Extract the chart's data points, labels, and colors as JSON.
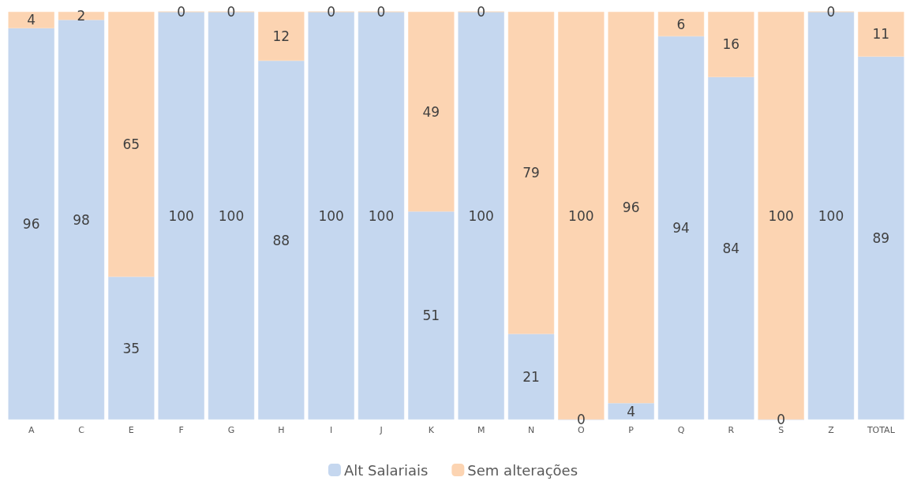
{
  "chart_data": {
    "type": "bar",
    "stacked": true,
    "data_labels": true,
    "legend": "bottom",
    "categories": [
      "A",
      "C",
      "E",
      "F",
      "G",
      "H",
      "I",
      "J",
      "K",
      "M",
      "N",
      "O",
      "P",
      "Q",
      "R",
      "S",
      "Z",
      "TOTAL"
    ],
    "series": [
      {
        "name": "Alt Salariais",
        "color": "#c5d7ef",
        "values": [
          96,
          98,
          35,
          100,
          100,
          88,
          100,
          100,
          51,
          100,
          21,
          0,
          4,
          94,
          84,
          0,
          100,
          89
        ]
      },
      {
        "name": "Sem alterações",
        "color": "#fcd4b2",
        "values": [
          4,
          2,
          65,
          0,
          0,
          12,
          0,
          0,
          49,
          0,
          79,
          100,
          96,
          6,
          16,
          100,
          0,
          11
        ]
      }
    ]
  }
}
